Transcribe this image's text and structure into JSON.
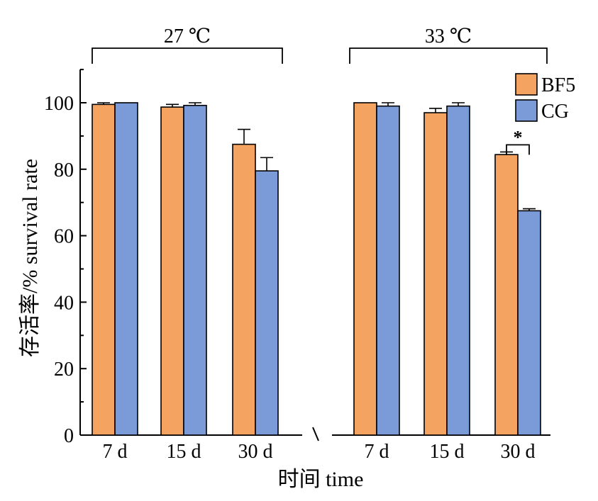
{
  "chart_data": {
    "type": "bar",
    "ylabel": "存活率/% survival rate",
    "xlabel": "时间 time",
    "ylim": [
      0,
      110
    ],
    "yticks": [
      0,
      20,
      40,
      60,
      80,
      100
    ],
    "groups": [
      {
        "label": "27 ℃",
        "categories": [
          "7 d",
          "15 d",
          "30 d"
        ]
      },
      {
        "label": "33 ℃",
        "categories": [
          "7 d",
          "15 d",
          "30 d"
        ]
      }
    ],
    "series": [
      {
        "name": "BF5",
        "color": "#F4A460",
        "values": [
          99.5,
          98.7,
          87.5,
          100,
          97,
          84.4
        ],
        "errors": [
          0.5,
          0.8,
          4.5,
          0,
          1.3,
          0.8
        ]
      },
      {
        "name": "CG",
        "color": "#7B9AD8",
        "values": [
          100,
          99.2,
          79.5,
          99,
          99,
          67.5
        ],
        "errors": [
          0,
          0.8,
          4,
          1,
          1,
          0.6
        ]
      }
    ],
    "significance": [
      {
        "group": 1,
        "category": 2,
        "label": "*"
      }
    ],
    "legend": "top-right"
  }
}
